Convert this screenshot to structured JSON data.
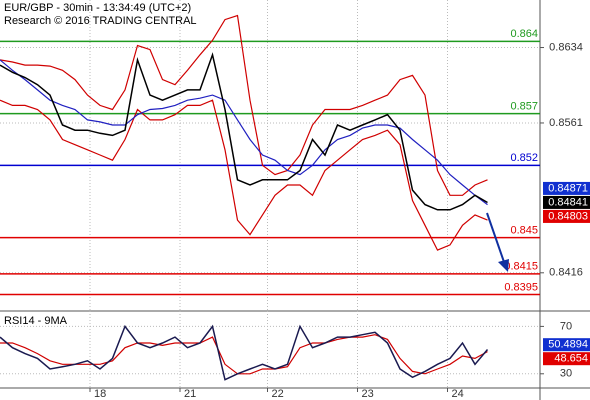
{
  "chart_data": [
    {
      "type": "line",
      "title": "EUR/GBP - 30min - 13:34:49 (UTC+2)",
      "subtitle": "Research © 2016 TRADING CENTRAL",
      "x": [
        0,
        1,
        2,
        3,
        4,
        5,
        6,
        7,
        8,
        9,
        10,
        11,
        12,
        13,
        14,
        15,
        16,
        17,
        18,
        19,
        20,
        21,
        22,
        23,
        24,
        25,
        26,
        27,
        28,
        29,
        30,
        31,
        32,
        33,
        34,
        35,
        36,
        37,
        38,
        39
      ],
      "xlim": [
        0,
        43.2
      ],
      "ylim": [
        0.838,
        0.868
      ],
      "yticks": [
        0.8634,
        0.8561,
        0.8416
      ],
      "grid": true,
      "series": [
        {
          "color": "#d00000",
          "values": [
            0.8622,
            0.862,
            0.8617,
            0.8617,
            0.8616,
            0.8612,
            0.8603,
            0.8588,
            0.8578,
            0.8574,
            0.8593,
            0.8636,
            0.8632,
            0.8603,
            0.8598,
            0.8612,
            0.8627,
            0.8641,
            0.8661,
            0.8665,
            0.8583,
            0.852,
            0.8511,
            0.8515,
            0.853,
            0.8559,
            0.8574,
            0.8574,
            0.8574,
            0.8578,
            0.8583,
            0.8588,
            0.8603,
            0.8607,
            0.8588,
            0.8515,
            0.8491,
            0.8491,
            0.8501,
            0.8506
          ]
        },
        {
          "color": "#d00000",
          "values": [
            0.8583,
            0.8578,
            0.8578,
            0.8574,
            0.8564,
            0.8545,
            0.854,
            0.8535,
            0.853,
            0.8525,
            0.8545,
            0.8574,
            0.8564,
            0.8564,
            0.8569,
            0.8578,
            0.8578,
            0.8583,
            0.8535,
            0.8467,
            0.8453,
            0.8472,
            0.8491,
            0.8501,
            0.8501,
            0.8491,
            0.8515,
            0.8525,
            0.8535,
            0.8545,
            0.8549,
            0.8554,
            0.854,
            0.8486,
            0.8462,
            0.8438,
            0.8443,
            0.8462,
            0.8472,
            0.8467
          ]
        },
        {
          "color": "#2020c0",
          "values": [
            0.8622,
            0.8612,
            0.8603,
            0.8593,
            0.8583,
            0.8578,
            0.8574,
            0.8564,
            0.8562,
            0.8559,
            0.8559,
            0.8569,
            0.8574,
            0.8575,
            0.8578,
            0.8583,
            0.8585,
            0.8588,
            0.8583,
            0.8564,
            0.8545,
            0.853,
            0.8525,
            0.8515,
            0.8511,
            0.852,
            0.8535,
            0.8545,
            0.8549,
            0.8556,
            0.8559,
            0.8559,
            0.8556,
            0.8545,
            0.8535,
            0.8525,
            0.8511,
            0.8501,
            0.8491,
            0.8482
          ]
        },
        {
          "color": "#000000",
          "values": [
            0.8617,
            0.861,
            0.8605,
            0.8598,
            0.8588,
            0.8559,
            0.8554,
            0.8554,
            0.8551,
            0.8549,
            0.8554,
            0.8622,
            0.8588,
            0.8583,
            0.8588,
            0.8593,
            0.8593,
            0.8627,
            0.8574,
            0.8506,
            0.8501,
            0.8506,
            0.8506,
            0.8506,
            0.8515,
            0.8545,
            0.853,
            0.8559,
            0.8554,
            0.8559,
            0.8564,
            0.8569,
            0.8554,
            0.8496,
            0.8482,
            0.8477,
            0.8477,
            0.8482,
            0.8491,
            0.8484
          ]
        }
      ],
      "levels": [
        {
          "value": 0.864,
          "color": "#1f9a1f"
        },
        {
          "value": 0.857,
          "color": "#1f9a1f"
        },
        {
          "value": 0.852,
          "color": "#0000d0"
        },
        {
          "value": 0.845,
          "color": "#e00000"
        },
        {
          "value": 0.8415,
          "color": "#e00000"
        },
        {
          "value": 0.8395,
          "color": "#e00000"
        }
      ],
      "markers": [
        {
          "value": 0.84871,
          "color": "#1030d0"
        },
        {
          "value": 0.84841,
          "color": "#000000"
        },
        {
          "value": 0.84803,
          "color": "#e00000"
        }
      ]
    },
    {
      "type": "line",
      "title": "RSI14 - 9MA",
      "x": [
        0,
        1,
        2,
        3,
        4,
        5,
        6,
        7,
        8,
        9,
        10,
        11,
        12,
        13,
        14,
        15,
        16,
        17,
        18,
        19,
        20,
        21,
        22,
        23,
        24,
        25,
        26,
        27,
        28,
        29,
        30,
        31,
        32,
        33,
        34,
        35,
        36,
        37,
        38,
        39
      ],
      "xlim": [
        0,
        43.2
      ],
      "xticks": [
        {
          "value": 7.2,
          "label": "18"
        },
        {
          "value": 14.4,
          "label": "21"
        },
        {
          "value": 21.4,
          "label": "22"
        },
        {
          "value": 28.6,
          "label": "23"
        },
        {
          "value": 35.8,
          "label": "24"
        }
      ],
      "ylim": [
        18,
        83
      ],
      "yticks": [
        70,
        30
      ],
      "grid": true,
      "series": [
        {
          "color": "#d00000",
          "values": [
            56,
            56,
            52,
            47,
            41,
            38,
            38,
            38,
            38,
            41,
            52,
            56,
            56,
            54,
            56,
            56,
            56,
            61,
            38,
            30,
            30,
            34,
            34,
            36,
            52,
            56,
            56,
            59,
            61,
            61,
            63,
            59,
            43,
            32,
            30,
            34,
            38,
            45,
            43,
            48.7
          ]
        },
        {
          "color": "#1a1a50",
          "values": [
            61,
            52,
            47,
            43,
            34,
            36,
            38,
            41,
            34,
            43,
            70,
            56,
            52,
            56,
            61,
            52,
            56,
            70,
            25,
            30,
            34,
            38,
            34,
            38,
            70,
            52,
            56,
            61,
            61,
            63,
            65,
            56,
            34,
            27,
            32,
            38,
            43,
            56,
            38,
            50.5
          ]
        }
      ],
      "markers": [
        {
          "value": 50.4894,
          "color": "#1030d0"
        },
        {
          "value": 48.654,
          "color": "#e00000"
        }
      ]
    }
  ]
}
